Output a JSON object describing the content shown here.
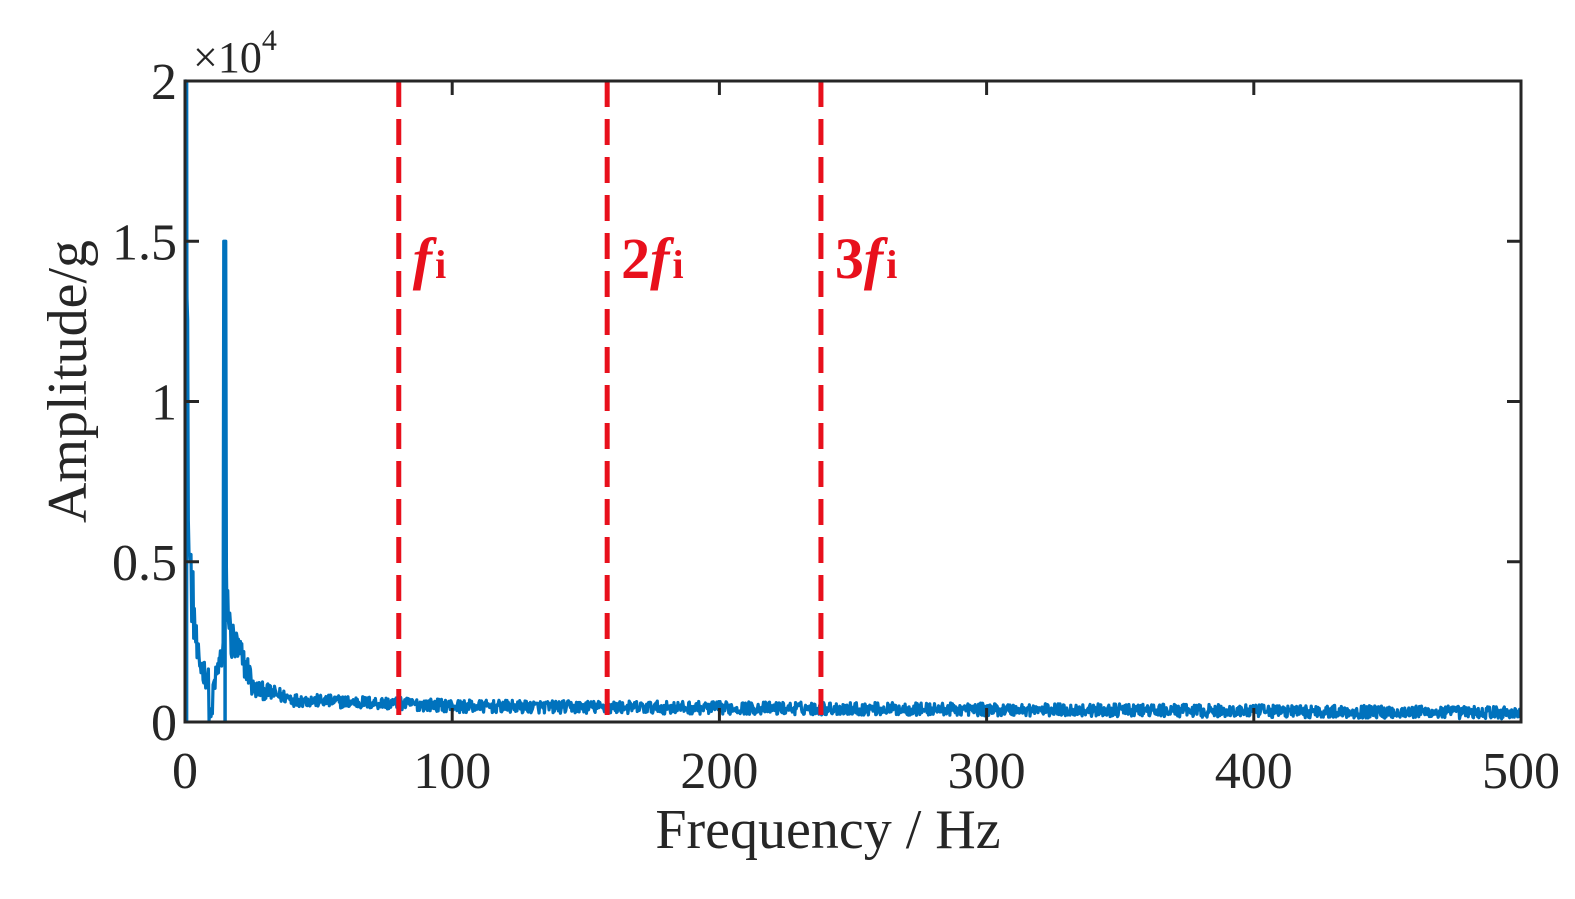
{
  "chart_data": {
    "type": "line",
    "title": "",
    "xlabel": "Frequency / Hz",
    "ylabel": "Amplitude/g",
    "xlim": [
      0,
      500
    ],
    "ylim": [
      0,
      2
    ],
    "y_multiplier": {
      "base": "×10",
      "exponent": "4"
    },
    "x_ticks": [
      {
        "value": 0,
        "label": "0"
      },
      {
        "value": 100,
        "label": "100"
      },
      {
        "value": 200,
        "label": "200"
      },
      {
        "value": 300,
        "label": "300"
      },
      {
        "value": 400,
        "label": "400"
      },
      {
        "value": 500,
        "label": "500"
      }
    ],
    "y_ticks": [
      {
        "value": 0,
        "label": "0"
      },
      {
        "value": 0.5,
        "label": "0.5"
      },
      {
        "value": 1,
        "label": "1"
      },
      {
        "value": 1.5,
        "label": "1.5"
      },
      {
        "value": 2,
        "label": "2"
      }
    ],
    "grid": false,
    "box": true,
    "series": [
      {
        "color": "#0072BD",
        "peaks": [
          {
            "x": 0.6,
            "y": 2.0
          },
          {
            "x": 15,
            "y": 1.5
          }
        ]
      }
    ],
    "markers": [
      {
        "x": 80,
        "coef": "",
        "sym": "f",
        "sub": "i",
        "color": "#E8101C"
      },
      {
        "x": 158,
        "coef": "2",
        "sym": "f",
        "sub": "i",
        "color": "#E8101C"
      },
      {
        "x": 238,
        "coef": "3",
        "sym": "f",
        "sub": "i",
        "color": "#E8101C"
      }
    ]
  }
}
